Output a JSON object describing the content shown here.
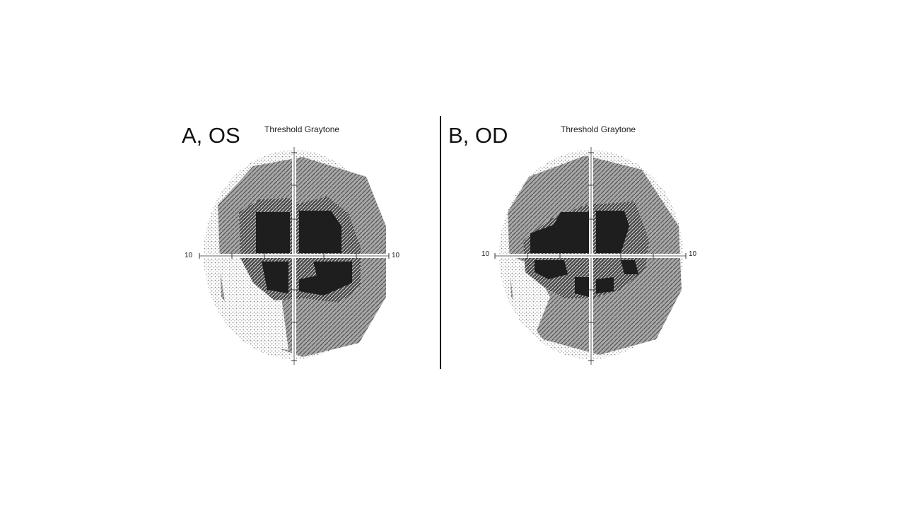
{
  "panels": [
    {
      "label": "A, OS",
      "title": "Threshold Graytone",
      "left_tick": "10",
      "right_tick": "10"
    },
    {
      "label": "B, OD",
      "title": "Threshold Graytone",
      "left_tick": "10",
      "right_tick": "10"
    }
  ],
  "colors": {
    "background": "#ffffff",
    "light_dots": "#c8c8c8",
    "mid_gray": "#9a9a9a",
    "hatch": "#7c7c7c",
    "dark": "#1e1e1e",
    "axis": "#ffffff",
    "divider": "#111111"
  }
}
